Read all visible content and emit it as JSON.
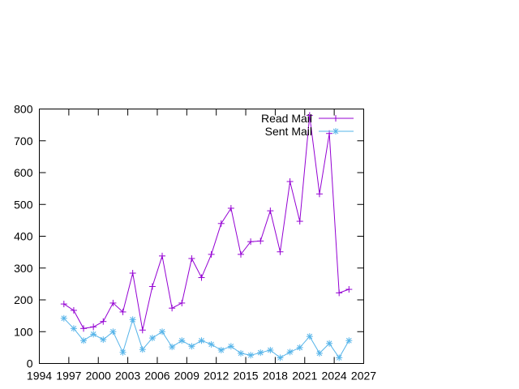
{
  "chart_data": {
    "type": "line",
    "title": "",
    "xlabel": "",
    "ylabel": "",
    "xlim": [
      1994,
      2027
    ],
    "ylim": [
      0,
      800
    ],
    "x_ticks": [
      "1994",
      "1997",
      "2000",
      "2003",
      "2006",
      "2009",
      "2012",
      "2015",
      "2018",
      "2021",
      "2024",
      "2027"
    ],
    "y_ticks": [
      "0",
      "100",
      "200",
      "300",
      "400",
      "500",
      "600",
      "700",
      "800"
    ],
    "grid": false,
    "legend_position": "top-right",
    "x": [
      1996.5,
      1997.5,
      1998.5,
      1999.5,
      2000.5,
      2001.5,
      2002.5,
      2003.5,
      2004.5,
      2005.5,
      2006.5,
      2007.5,
      2008.5,
      2009.5,
      2010.5,
      2011.5,
      2012.5,
      2013.5,
      2014.5,
      2015.5,
      2016.5,
      2017.5,
      2018.5,
      2019.5,
      2020.5,
      2021.5,
      2022.5,
      2023.5,
      2024.5,
      2025.5
    ],
    "series": [
      {
        "name": "Read Mail",
        "color": "#9400d3",
        "marker": "plus",
        "values": [
          187,
          167,
          110,
          115,
          132,
          190,
          162,
          284,
          105,
          242,
          338,
          174,
          190,
          330,
          270,
          343,
          440,
          488,
          343,
          383,
          385,
          480,
          351,
          572,
          447,
          780,
          533,
          723,
          222,
          233
        ]
      },
      {
        "name": "Sent Mail",
        "color": "#56b4e9",
        "marker": "asterisk",
        "values": [
          142,
          110,
          72,
          92,
          75,
          100,
          35,
          138,
          44,
          80,
          100,
          52,
          72,
          54,
          72,
          60,
          42,
          54,
          32,
          26,
          34,
          42,
          18,
          36,
          50,
          85,
          32,
          63,
          18,
          72
        ]
      }
    ]
  }
}
